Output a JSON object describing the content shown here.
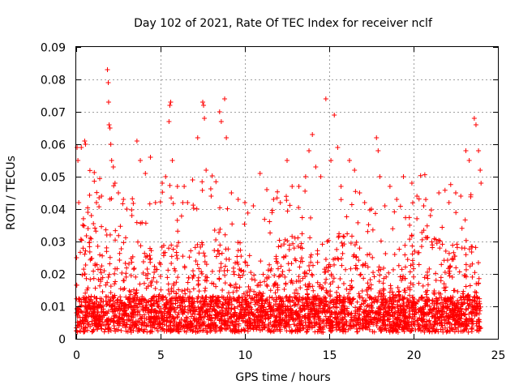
{
  "chart_data": {
    "type": "scatter",
    "title": "Day 102 of 2021, Rate Of TEC Index for receiver nclf",
    "xlabel": "GPS time / hours",
    "ylabel": "ROTI / TECUs",
    "xlim": [
      0,
      25
    ],
    "ylim": [
      0,
      0.09
    ],
    "xticks": [
      "0",
      "5",
      "10",
      "15",
      "20",
      "25"
    ],
    "yticks": [
      "0",
      "0.01",
      "0.02",
      "0.03",
      "0.04",
      "0.05",
      "0.06",
      "0.07",
      "0.08",
      "0.09"
    ],
    "grid": true,
    "marker": "+",
    "color": "#ff0000",
    "series": [
      {
        "name": "ROTI",
        "points": [
          [
            0.05,
            0.059
          ],
          [
            0.1,
            0.055
          ],
          [
            0.15,
            0.042
          ],
          [
            0.3,
            0.059
          ],
          [
            0.4,
            0.035
          ],
          [
            0.5,
            0.061
          ],
          [
            0.55,
            0.06
          ],
          [
            0.7,
            0.034
          ],
          [
            0.9,
            0.038
          ],
          [
            1.2,
            0.042
          ],
          [
            1.5,
            0.044
          ],
          [
            1.85,
            0.083
          ],
          [
            1.9,
            0.079
          ],
          [
            1.92,
            0.073
          ],
          [
            1.95,
            0.066
          ],
          [
            2.0,
            0.065
          ],
          [
            2.05,
            0.06
          ],
          [
            2.1,
            0.055
          ],
          [
            2.2,
            0.053
          ],
          [
            2.3,
            0.048
          ],
          [
            2.5,
            0.045
          ],
          [
            2.8,
            0.043
          ],
          [
            3.0,
            0.04
          ],
          [
            3.3,
            0.038
          ],
          [
            3.6,
            0.061
          ],
          [
            3.8,
            0.055
          ],
          [
            4.1,
            0.051
          ],
          [
            4.4,
            0.056
          ],
          [
            4.7,
            0.042
          ],
          [
            5.1,
            0.048
          ],
          [
            5.3,
            0.05
          ],
          [
            5.5,
            0.067
          ],
          [
            5.55,
            0.072
          ],
          [
            5.6,
            0.073
          ],
          [
            5.7,
            0.055
          ],
          [
            6.0,
            0.047
          ],
          [
            6.4,
            0.047
          ],
          [
            6.6,
            0.042
          ],
          [
            6.9,
            0.049
          ],
          [
            7.2,
            0.062
          ],
          [
            7.5,
            0.073
          ],
          [
            7.55,
            0.072
          ],
          [
            7.6,
            0.068
          ],
          [
            7.7,
            0.052
          ],
          [
            8.0,
            0.044
          ],
          [
            8.5,
            0.07
          ],
          [
            8.6,
            0.067
          ],
          [
            8.8,
            0.074
          ],
          [
            8.9,
            0.062
          ],
          [
            9.2,
            0.045
          ],
          [
            9.6,
            0.043
          ],
          [
            10.0,
            0.042
          ],
          [
            10.5,
            0.041
          ],
          [
            10.9,
            0.051
          ],
          [
            11.3,
            0.046
          ],
          [
            11.7,
            0.043
          ],
          [
            12.1,
            0.042
          ],
          [
            12.5,
            0.055
          ],
          [
            12.8,
            0.047
          ],
          [
            13.2,
            0.047
          ],
          [
            13.6,
            0.05
          ],
          [
            13.8,
            0.058
          ],
          [
            14.0,
            0.063
          ],
          [
            14.2,
            0.053
          ],
          [
            14.5,
            0.05
          ],
          [
            14.8,
            0.074
          ],
          [
            15.1,
            0.055
          ],
          [
            15.3,
            0.069
          ],
          [
            15.5,
            0.059
          ],
          [
            15.7,
            0.047
          ],
          [
            16.2,
            0.055
          ],
          [
            16.5,
            0.052
          ],
          [
            16.8,
            0.045
          ],
          [
            17.1,
            0.042
          ],
          [
            17.5,
            0.04
          ],
          [
            17.8,
            0.062
          ],
          [
            17.9,
            0.058
          ],
          [
            18.0,
            0.05
          ],
          [
            18.3,
            0.041
          ],
          [
            18.6,
            0.047
          ],
          [
            19.0,
            0.043
          ],
          [
            19.4,
            0.05
          ],
          [
            19.9,
            0.048
          ],
          [
            20.2,
            0.044
          ],
          [
            20.6,
            0.041
          ],
          [
            21.0,
            0.038
          ],
          [
            21.5,
            0.045
          ],
          [
            22.1,
            0.042
          ],
          [
            22.5,
            0.045
          ],
          [
            22.8,
            0.044
          ],
          [
            23.1,
            0.058
          ],
          [
            23.3,
            0.055
          ],
          [
            23.6,
            0.068
          ],
          [
            23.7,
            0.066
          ],
          [
            23.85,
            0.058
          ],
          [
            23.95,
            0.052
          ],
          [
            24.0,
            0.048
          ]
        ]
      }
    ]
  }
}
